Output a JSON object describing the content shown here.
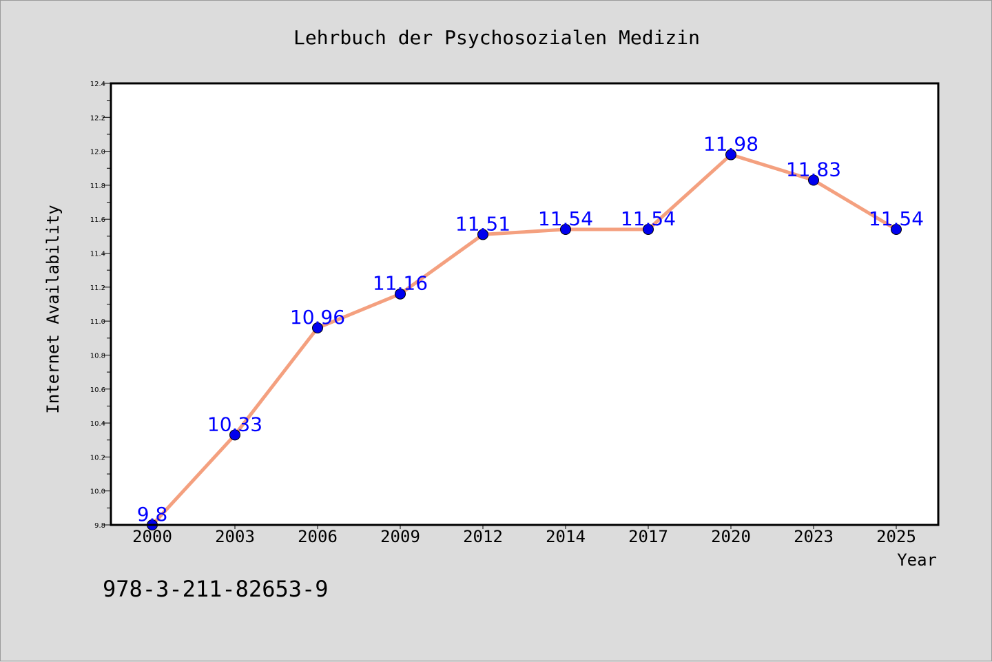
{
  "chart_data": {
    "type": "line",
    "title": "Lehrbuch der Psychosozialen Medizin",
    "xlabel": "Year",
    "ylabel": "Internet Availability",
    "categories": [
      "2000",
      "2003",
      "2006",
      "2009",
      "2012",
      "2014",
      "2017",
      "2020",
      "2023",
      "2025"
    ],
    "series": [
      {
        "values": [
          9.8,
          10.33,
          10.96,
          11.16,
          11.51,
          11.54,
          11.54,
          11.98,
          11.83,
          11.54
        ],
        "labels": [
          "9.8",
          "10.33",
          "10.96",
          "11.16",
          "11.51",
          "11.54",
          "11.54",
          "11.98",
          "11.83",
          "11.54"
        ]
      }
    ],
    "ylim": [
      9.8,
      12.4
    ],
    "yticks": [
      "9.8",
      "10.0",
      "10.2",
      "10.4",
      "10.6",
      "10.8",
      "11.0",
      "11.2",
      "11.4",
      "11.6",
      "11.8",
      "12.0",
      "12.2",
      "12.4"
    ],
    "grid": false,
    "colors": {
      "line": "#f4a07f",
      "marker": "#0000ee",
      "label": "#0000ff",
      "plot_background": "#ffffff",
      "page_background": "#dcdcdc"
    }
  },
  "footer_text": "978-3-211-82653-9"
}
